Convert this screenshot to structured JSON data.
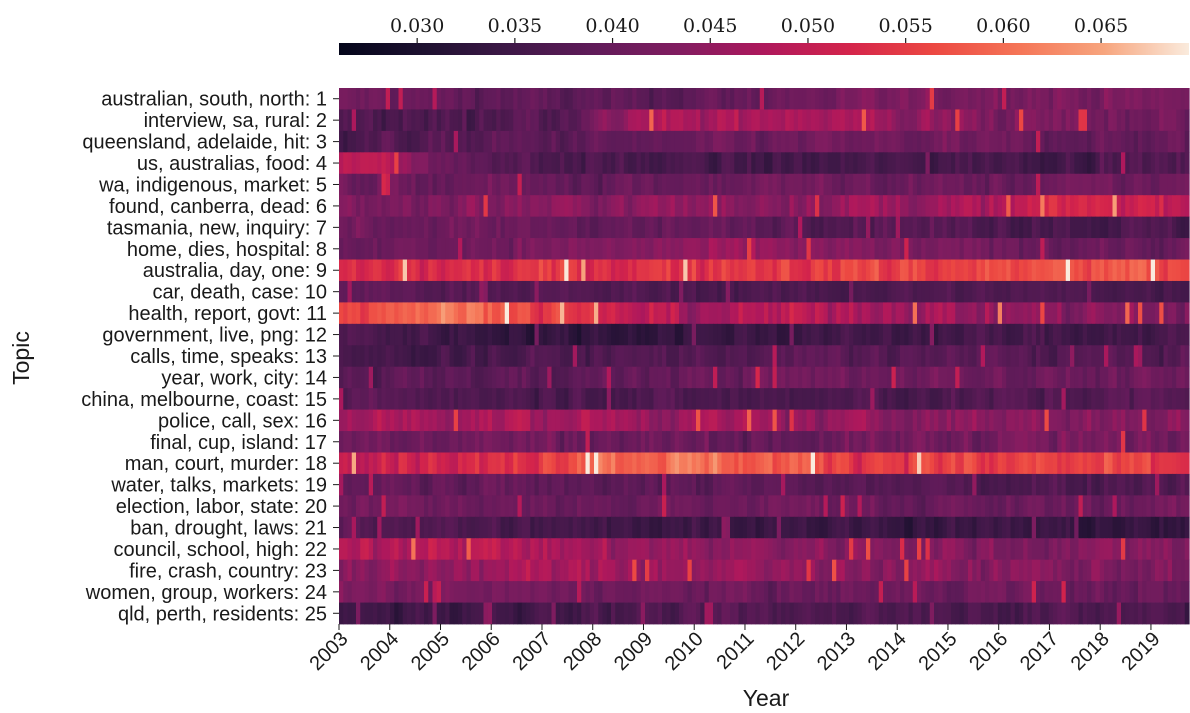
{
  "chart_data": {
    "type": "heatmap",
    "title": "",
    "xlabel": "Year",
    "ylabel": "Topic",
    "x_tick_labels": [
      "2003",
      "2004",
      "2005",
      "2006",
      "2007",
      "2008",
      "2009",
      "2010",
      "2011",
      "2012",
      "2013",
      "2014",
      "2015",
      "2016",
      "2017",
      "2018",
      "2019"
    ],
    "x_range": [
      2003.0,
      2019.75
    ],
    "y_tick_labels": [
      "australian, south, north: 1",
      "interview, sa, rural: 2",
      "queensland, adelaide, hit: 3",
      "us, australias, food: 4",
      "wa, indigenous, market: 5",
      "found, canberra, dead: 6",
      "tasmania, new, inquiry: 7",
      "home, dies, hospital: 8",
      "australia, day, one: 9",
      "car, death, case: 10",
      "health, report, govt: 11",
      "government, live, png: 12",
      "calls, time, speaks: 13",
      "year, work, city: 14",
      "china, melbourne, coast: 15",
      "police, call, sex: 16",
      "final, cup, island: 17",
      "man, court, murder: 18",
      "water, talks, markets: 19",
      "election, labor, state: 20",
      "ban, drought, laws: 21",
      "council, school, high: 22",
      "fire, crash, country: 23",
      "women, group, workers: 24",
      "qld, perth, residents: 25"
    ],
    "colorbar": {
      "colormap": "rocket",
      "min": 0.026,
      "max": 0.0695,
      "tick_values": [
        0.03,
        0.035,
        0.04,
        0.045,
        0.05,
        0.055,
        0.06,
        0.065
      ],
      "tick_labels": [
        "0.030",
        "0.035",
        "0.040",
        "0.045",
        "0.050",
        "0.055",
        "0.060",
        "0.065"
      ],
      "position": "top"
    },
    "cells_per_row": 200,
    "topic_profiles": [
      {
        "topic": 1,
        "base": 0.04,
        "spread": 0.004,
        "trend": [
          [
            2003,
            0.041
          ],
          [
            2008,
            0.038
          ],
          [
            2010,
            0.039
          ],
          [
            2012,
            0.041
          ],
          [
            2016,
            0.043
          ],
          [
            2019.75,
            0.042
          ]
        ]
      },
      {
        "topic": 2,
        "base": 0.04,
        "spread": 0.005,
        "trend": [
          [
            2003,
            0.036
          ],
          [
            2006,
            0.037
          ],
          [
            2008,
            0.041
          ],
          [
            2009,
            0.048
          ],
          [
            2010,
            0.046
          ],
          [
            2012,
            0.049
          ],
          [
            2014,
            0.045
          ],
          [
            2016,
            0.043
          ],
          [
            2019.75,
            0.041
          ]
        ]
      },
      {
        "topic": 3,
        "base": 0.039,
        "spread": 0.004,
        "trend": [
          [
            2003,
            0.037
          ],
          [
            2006,
            0.038
          ],
          [
            2009,
            0.039
          ],
          [
            2013,
            0.041
          ],
          [
            2017,
            0.04
          ],
          [
            2019.75,
            0.039
          ]
        ]
      },
      {
        "topic": 4,
        "base": 0.037,
        "spread": 0.004,
        "trend": [
          [
            2003,
            0.049
          ],
          [
            2004,
            0.05
          ],
          [
            2005,
            0.04
          ],
          [
            2008,
            0.036
          ],
          [
            2012,
            0.035
          ],
          [
            2016,
            0.036
          ],
          [
            2019.75,
            0.037
          ]
        ]
      },
      {
        "topic": 5,
        "base": 0.04,
        "spread": 0.004,
        "trend": [
          [
            2003,
            0.041
          ],
          [
            2008,
            0.04
          ],
          [
            2012,
            0.041
          ],
          [
            2016,
            0.04
          ],
          [
            2019.75,
            0.041
          ]
        ]
      },
      {
        "topic": 6,
        "base": 0.043,
        "spread": 0.005,
        "trend": [
          [
            2003,
            0.043
          ],
          [
            2008,
            0.044
          ],
          [
            2012,
            0.045
          ],
          [
            2016,
            0.047
          ],
          [
            2017.5,
            0.053
          ],
          [
            2019.75,
            0.05
          ]
        ]
      },
      {
        "topic": 7,
        "base": 0.039,
        "spread": 0.004,
        "trend": [
          [
            2003,
            0.041
          ],
          [
            2008,
            0.04
          ],
          [
            2012,
            0.039
          ],
          [
            2016,
            0.037
          ],
          [
            2019.75,
            0.036
          ]
        ]
      },
      {
        "topic": 8,
        "base": 0.041,
        "spread": 0.004,
        "trend": [
          [
            2003,
            0.04
          ],
          [
            2008,
            0.043
          ],
          [
            2011,
            0.045
          ],
          [
            2014,
            0.042
          ],
          [
            2019.75,
            0.04
          ]
        ]
      },
      {
        "topic": 9,
        "base": 0.053,
        "spread": 0.006,
        "trend": [
          [
            2003,
            0.052
          ],
          [
            2005,
            0.053
          ],
          [
            2009,
            0.054
          ],
          [
            2012,
            0.055
          ],
          [
            2015,
            0.056
          ],
          [
            2017,
            0.057
          ],
          [
            2019.75,
            0.057
          ]
        ]
      },
      {
        "topic": 10,
        "base": 0.037,
        "spread": 0.003,
        "trend": [
          [
            2003,
            0.039
          ],
          [
            2008,
            0.037
          ],
          [
            2012,
            0.036
          ],
          [
            2016,
            0.037
          ],
          [
            2019.75,
            0.036
          ]
        ]
      },
      {
        "topic": 11,
        "base": 0.049,
        "spread": 0.006,
        "trend": [
          [
            2003,
            0.057
          ],
          [
            2005,
            0.061
          ],
          [
            2006,
            0.06
          ],
          [
            2008,
            0.052
          ],
          [
            2010,
            0.047
          ],
          [
            2013,
            0.049
          ],
          [
            2016,
            0.045
          ],
          [
            2019.75,
            0.042
          ]
        ]
      },
      {
        "topic": 12,
        "base": 0.036,
        "spread": 0.004,
        "trend": [
          [
            2003,
            0.037
          ],
          [
            2007,
            0.033
          ],
          [
            2010,
            0.034
          ],
          [
            2014,
            0.035
          ],
          [
            2019.75,
            0.036
          ]
        ]
      },
      {
        "topic": 13,
        "base": 0.037,
        "spread": 0.004,
        "trend": [
          [
            2003,
            0.035
          ],
          [
            2008,
            0.037
          ],
          [
            2012,
            0.038
          ],
          [
            2016,
            0.038
          ],
          [
            2019.75,
            0.037
          ]
        ]
      },
      {
        "topic": 14,
        "base": 0.039,
        "spread": 0.004,
        "trend": [
          [
            2003,
            0.038
          ],
          [
            2008,
            0.039
          ],
          [
            2012,
            0.041
          ],
          [
            2016,
            0.041
          ],
          [
            2019.75,
            0.04
          ]
        ]
      },
      {
        "topic": 15,
        "base": 0.037,
        "spread": 0.004,
        "trend": [
          [
            2003,
            0.038
          ],
          [
            2008,
            0.037
          ],
          [
            2012,
            0.036
          ],
          [
            2016,
            0.037
          ],
          [
            2019.75,
            0.038
          ]
        ]
      },
      {
        "topic": 16,
        "base": 0.045,
        "spread": 0.005,
        "trend": [
          [
            2003,
            0.047
          ],
          [
            2008,
            0.047
          ],
          [
            2012,
            0.045
          ],
          [
            2016,
            0.044
          ],
          [
            2019.75,
            0.043
          ]
        ]
      },
      {
        "topic": 17,
        "base": 0.041,
        "spread": 0.005,
        "trend": [
          [
            2003,
            0.042
          ],
          [
            2008,
            0.041
          ],
          [
            2012,
            0.04
          ],
          [
            2016,
            0.042
          ],
          [
            2019.75,
            0.041
          ]
        ]
      },
      {
        "topic": 18,
        "base": 0.055,
        "spread": 0.006,
        "trend": [
          [
            2003,
            0.053
          ],
          [
            2006,
            0.052
          ],
          [
            2008,
            0.06
          ],
          [
            2010,
            0.061
          ],
          [
            2012,
            0.057
          ],
          [
            2015,
            0.055
          ],
          [
            2019.75,
            0.055
          ]
        ]
      },
      {
        "topic": 19,
        "base": 0.038,
        "spread": 0.004,
        "trend": [
          [
            2003,
            0.039
          ],
          [
            2008,
            0.039
          ],
          [
            2012,
            0.038
          ],
          [
            2016,
            0.037
          ],
          [
            2019.75,
            0.038
          ]
        ]
      },
      {
        "topic": 20,
        "base": 0.041,
        "spread": 0.004,
        "trend": [
          [
            2003,
            0.042
          ],
          [
            2008,
            0.04
          ],
          [
            2012,
            0.041
          ],
          [
            2016,
            0.04
          ],
          [
            2019.75,
            0.041
          ]
        ]
      },
      {
        "topic": 21,
        "base": 0.036,
        "spread": 0.004,
        "trend": [
          [
            2003,
            0.039
          ],
          [
            2007,
            0.035
          ],
          [
            2011,
            0.035
          ],
          [
            2015,
            0.034
          ],
          [
            2019.75,
            0.033
          ]
        ]
      },
      {
        "topic": 22,
        "base": 0.045,
        "spread": 0.005,
        "trend": [
          [
            2003,
            0.047
          ],
          [
            2005,
            0.05
          ],
          [
            2008,
            0.046
          ],
          [
            2012,
            0.044
          ],
          [
            2016,
            0.043
          ],
          [
            2019.75,
            0.044
          ]
        ]
      },
      {
        "topic": 23,
        "base": 0.044,
        "spread": 0.005,
        "trend": [
          [
            2003,
            0.043
          ],
          [
            2007,
            0.047
          ],
          [
            2011,
            0.045
          ],
          [
            2015,
            0.044
          ],
          [
            2019.75,
            0.043
          ]
        ]
      },
      {
        "topic": 24,
        "base": 0.041,
        "spread": 0.004,
        "trend": [
          [
            2003,
            0.042
          ],
          [
            2008,
            0.041
          ],
          [
            2012,
            0.04
          ],
          [
            2016,
            0.041
          ],
          [
            2019.75,
            0.04
          ]
        ]
      },
      {
        "topic": 25,
        "base": 0.036,
        "spread": 0.004,
        "trend": [
          [
            2003,
            0.034
          ],
          [
            2008,
            0.036
          ],
          [
            2012,
            0.037
          ],
          [
            2016,
            0.037
          ],
          [
            2019.75,
            0.036
          ]
        ]
      }
    ]
  }
}
